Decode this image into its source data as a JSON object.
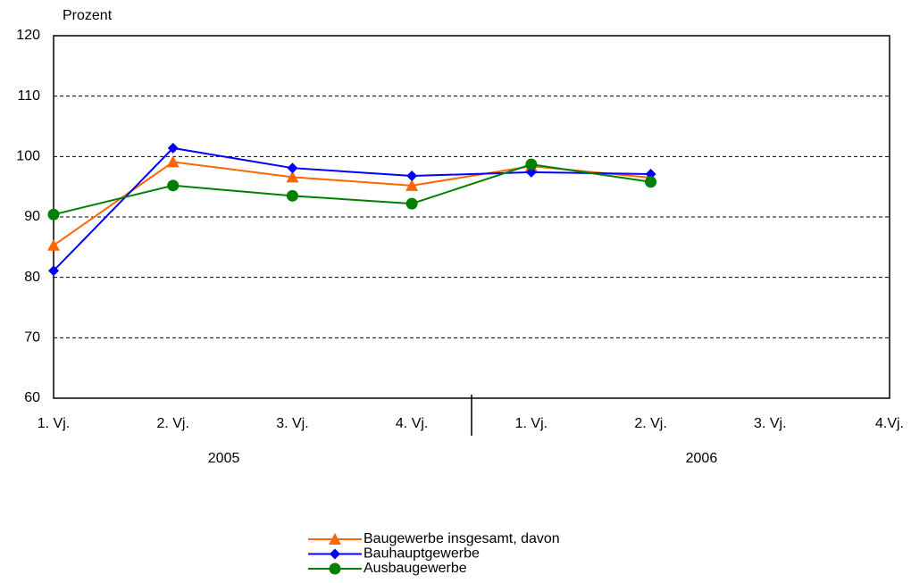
{
  "chart_data": {
    "type": "line",
    "y_label": "Prozent",
    "categories": [
      "1. Vj.",
      "2. Vj.",
      "3. Vj.",
      "4. Vj.",
      "1. Vj.",
      "2. Vj.",
      "3. Vj.",
      "4.Vj."
    ],
    "year_groups": [
      "2005",
      "2006"
    ],
    "series": [
      {
        "name": "Baugewerbe insgesamt, davon",
        "color": "#ff6600",
        "marker": "triangle",
        "values": [
          85.3,
          99.1,
          96.6,
          95.2,
          98.4,
          96.5,
          null,
          null
        ]
      },
      {
        "name": "Bauhauptgewerbe",
        "color": "#0000ff",
        "marker": "diamond",
        "values": [
          81.1,
          101.4,
          98.1,
          96.8,
          97.4,
          97.1,
          null,
          null
        ]
      },
      {
        "name": "Ausbaugewerbe",
        "color": "#008000",
        "marker": "circle",
        "values": [
          90.4,
          95.2,
          93.5,
          92.2,
          98.7,
          95.8,
          null,
          null
        ]
      }
    ],
    "ylim": [
      60,
      120
    ],
    "yticks": [
      60,
      70,
      80,
      90,
      100,
      110,
      120
    ],
    "grid": true
  }
}
